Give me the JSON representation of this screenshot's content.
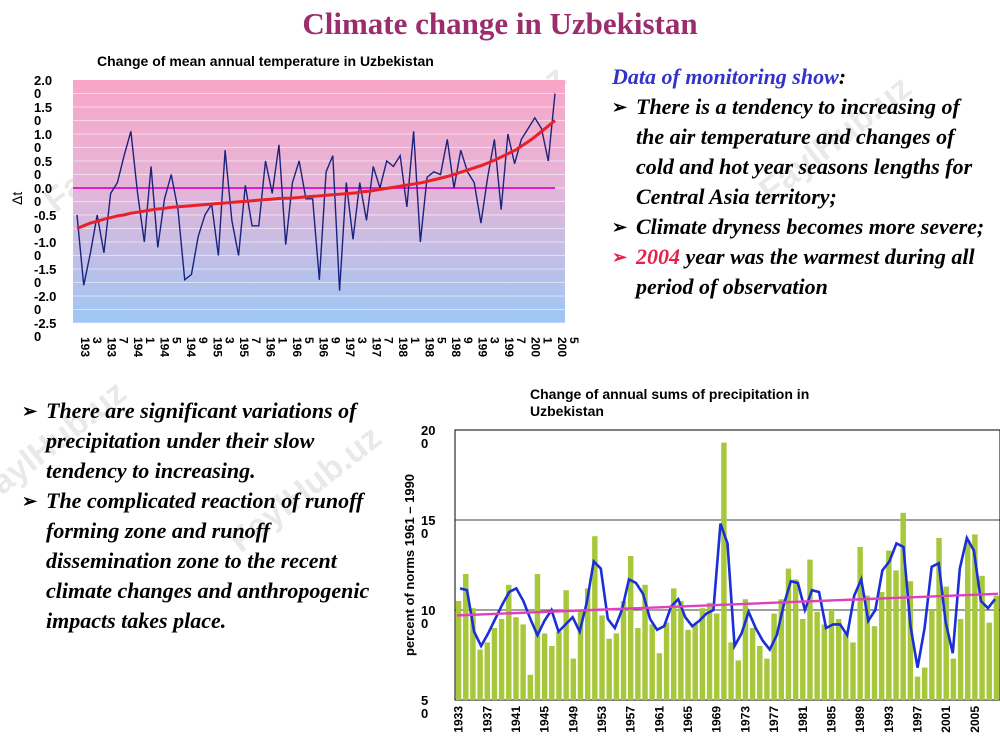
{
  "title": "Climate change in Uzbekistan",
  "watermark": "FaylHub.uz",
  "chart_top_title": "Change of mean annual temperature in Uzbekistan",
  "chart_bottom_title": "Change of annual sums of precipitation in Uzbekistan",
  "right_text": {
    "heading": "Data of monitoring show",
    "heading_colon": ":",
    "bullets": [
      "There is a tendency to increasing of the air temperature and changes of cold and hot year seasons lengths for Central Asia territory;",
      "Climate dryness becomes more severe;"
    ],
    "bullet3_year": "2004",
    "bullet3_rest": " year was the warmest during all period of observation"
  },
  "left_text": {
    "bullets": [
      "There are significant variations of precipitation under their slow tendency to increasing.",
      "The complicated reaction of runoff forming zone and runoff dissemination zone to the recent climate changes and anthropogenic impacts takes place."
    ]
  },
  "colors": {
    "title": "#9b2d6c",
    "heading_blue": "#3333cc",
    "highlight_red": "#e8204a",
    "temp_line": "#1a237e",
    "trend_red": "#e8202a",
    "zero_magenta": "#e020d0",
    "bar_green": "#a8c83c",
    "precip_line": "#1a2fd8",
    "precip_trend": "#e040c0"
  },
  "chart_data": [
    {
      "type": "line",
      "title": "Change of mean annual temperature in Uzbekistan",
      "ylabel": "Δt",
      "ylim": [
        -2.5,
        2.0
      ],
      "yticks": [
        "2.0\n0",
        "1.5\n0",
        "1.0\n0",
        "0.5\n0",
        "0.0\n0",
        "-0.5\n0",
        "-1.0\n0",
        "-1.5\n0",
        "-2.0\n0",
        "-2.5\n0"
      ],
      "xticks": [
        "193\n3",
        "193\n7",
        "194\n1",
        "194\n5",
        "194\n9",
        "195\n3",
        "195\n7",
        "196\n1",
        "196\n5",
        "196\n9",
        "197\n3",
        "197\n7",
        "198\n1",
        "198\n5",
        "198\n9",
        "199\n3",
        "199\n7",
        "200\n1",
        "200\n5"
      ],
      "x_start": 1933,
      "x_end": 2005,
      "series": [
        {
          "values": [
            -0.5,
            -1.8,
            -1.2,
            -0.5,
            -1.2,
            -0.1,
            0.1,
            0.6,
            1.05,
            -0.1,
            -1.0,
            0.4,
            -1.1,
            -0.2,
            0.25,
            -0.4,
            -1.7,
            -1.6,
            -0.9,
            -0.5,
            -0.3,
            -1.25,
            0.7,
            -0.6,
            -1.25,
            0.05,
            -0.7,
            -0.7,
            0.5,
            -0.1,
            0.8,
            -1.05,
            0.1,
            0.5,
            -0.2,
            -0.2,
            -1.7,
            0.3,
            0.6,
            -1.9,
            0.1,
            -0.95,
            0.1,
            -0.6,
            0.4,
            0.0,
            0.5,
            0.4,
            0.6,
            -0.35,
            1.05,
            -1.0,
            0.2,
            0.3,
            0.25,
            0.9,
            0.0,
            0.7,
            0.3,
            0.1,
            -0.65,
            0.2,
            0.9,
            -0.4,
            1.0,
            0.45,
            0.9,
            1.1,
            1.3,
            1.1,
            0.5,
            1.75
          ]
        },
        {
          "values": [
            -0.75,
            -0.7,
            -0.65,
            -0.62,
            -0.58,
            -0.55,
            -0.52,
            -0.5,
            -0.47,
            -0.45,
            -0.43,
            -0.41,
            -0.39,
            -0.38,
            -0.36,
            -0.35,
            -0.34,
            -0.33,
            -0.32,
            -0.31,
            -0.3,
            -0.29,
            -0.28,
            -0.27,
            -0.26,
            -0.25,
            -0.24,
            -0.23,
            -0.22,
            -0.21,
            -0.2,
            -0.19,
            -0.19,
            -0.18,
            -0.17,
            -0.16,
            -0.15,
            -0.14,
            -0.13,
            -0.12,
            -0.11,
            -0.1,
            -0.09,
            -0.07,
            -0.06,
            -0.04,
            -0.02,
            0.0,
            0.02,
            0.04,
            0.06,
            0.08,
            0.1,
            0.13,
            0.16,
            0.19,
            0.22,
            0.26,
            0.3,
            0.34,
            0.38,
            0.42,
            0.47,
            0.52,
            0.58,
            0.64,
            0.7,
            0.78,
            0.86,
            0.95,
            1.05,
            1.15,
            1.25
          ]
        },
        {
          "values": [
            0,
            0
          ]
        }
      ]
    },
    {
      "type": "bar",
      "title": "Change of annual sums of precipitation in Uzbekistan",
      "ylabel": "percent of norms 1961 – 1990",
      "ylim": [
        50,
        200
      ],
      "yticks": [
        "20\n0",
        "15\n0",
        "10\n0",
        "5\n0"
      ],
      "xticks": [
        "1933",
        "1937",
        "1941",
        "1945",
        "1949",
        "1953",
        "1957",
        "1961",
        "1965",
        "1969",
        "1973",
        "1977",
        "1981",
        "1985",
        "1989",
        "1993",
        "1997",
        "2001",
        "2005"
      ],
      "x_start": 1933,
      "x_end": 2006,
      "values": [
        105,
        120,
        101,
        78,
        82,
        90,
        95,
        114,
        96,
        92,
        64,
        120,
        87,
        80,
        88,
        111,
        73,
        100,
        112,
        141,
        97,
        84,
        87,
        105,
        130,
        90,
        114,
        92,
        76,
        93,
        112,
        105,
        89,
        92,
        101,
        104,
        98,
        193,
        82,
        72,
        106,
        90,
        80,
        73,
        98,
        106,
        123,
        117,
        95,
        128,
        99,
        92,
        100,
        95,
        87,
        82,
        135,
        108,
        91,
        110,
        133,
        122,
        154,
        116,
        63,
        68,
        100,
        140,
        113,
        73,
        95,
        138,
        142,
        119,
        93,
        108
      ],
      "series": [
        {
          "values": [
            112,
            111,
            88,
            80,
            87,
            95,
            103,
            110,
            112,
            105,
            95,
            86,
            94,
            100,
            88,
            92,
            96,
            88,
            104,
            127,
            123,
            95,
            90,
            100,
            117,
            115,
            109,
            95,
            89,
            91,
            102,
            106,
            96,
            91,
            94,
            98,
            100,
            148,
            137,
            80,
            87,
            99,
            90,
            83,
            78,
            86,
            103,
            116,
            115,
            100,
            111,
            110,
            90,
            92,
            92,
            86,
            108,
            117,
            94,
            100,
            122,
            127,
            137,
            135,
            91,
            68,
            90,
            124,
            126,
            93,
            76,
            123,
            140,
            133,
            105,
            101,
            106
          ]
        },
        {
          "values": [
            97,
            109
          ]
        }
      ]
    }
  ]
}
